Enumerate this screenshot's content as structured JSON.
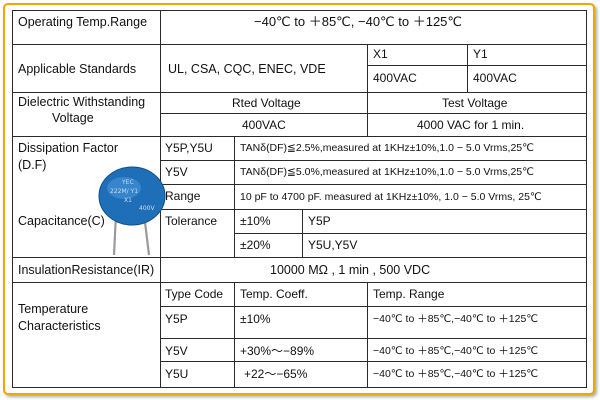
{
  "rows": {
    "operating_temp": {
      "label": "Operating Temp.Range",
      "value": "−40℃   to   ＋85℃, −40℃   to   ＋125℃"
    },
    "standards": {
      "label": "Applicable Standards",
      "list": "UL,   CSA,    CQC,    ENEC,   VDE",
      "x1_header": "X1",
      "x1_value": "400VAC",
      "y1_header": "Y1",
      "y1_value": "400VAC"
    },
    "dielectric": {
      "label_line1": "Dielectric    Withstanding",
      "label_line2": "Voltage",
      "rated_header": "Rted Voltage",
      "rated_value": "400VAC",
      "test_header": "Test Voltage",
      "test_value": "4000 VAC for 1 min."
    },
    "dissipation": {
      "label_line1": "Dissipation Factor",
      "label_line2": "(D.F)",
      "y5p_y5u_code": "Y5P,Y5U",
      "y5p_y5u_spec": "TANδ(DF)≦2.5%,measured at 1KHz±10%,1.0  −  5.0 Vrms,25℃",
      "y5v_code": "Y5V",
      "y5v_spec": "TANδ(DF)≦5.0%,measured at 1KHz±10%,1.0  −  5.0 Vrms,25℃"
    },
    "capacitance": {
      "label": "Capacitance(C)",
      "range_label": "Range",
      "range_value": "10 pF   to   4700 pF. measured at 1KHz±10%, 1.0  −  5.0 Vrms, 25℃",
      "tolerance_label": "Tolerance",
      "tol1_value": "±10%",
      "tol1_types": "Y5P",
      "tol2_value": "±20%",
      "tol2_types": "Y5U,Y5V"
    },
    "insulation": {
      "label": "InsulationResistance(IR)",
      "value": "10000 MΩ      ,           1 min , 500 VDC"
    },
    "temperature": {
      "label_line1": "Temperature",
      "label_line2": "Characteristics",
      "col_type": "Type Code",
      "col_coeff": "Temp. Coeff.",
      "col_range": "Temp. Range",
      "items": [
        {
          "code": "Y5P",
          "coeff": "±10%",
          "range": "−40℃   to   ＋85℃,−40℃   to   ＋125℃"
        },
        {
          "code": "Y5V",
          "coeff": "+30%～−89%",
          "range": "−40℃   to   ＋85℃,−40℃   to   ＋125℃"
        },
        {
          "code": "Y5U",
          "coeff": "+22～−65%",
          "range": "−40℃   to   ＋85℃,−40℃   to   ＋125℃"
        }
      ]
    }
  },
  "capacitor_marking": [
    "YEC",
    "222M/ Y1",
    "X1",
    "400V"
  ],
  "colors": {
    "frame": "#f3a500",
    "capacitor": "#1e6fb8",
    "lead": "#9a9a9a"
  }
}
